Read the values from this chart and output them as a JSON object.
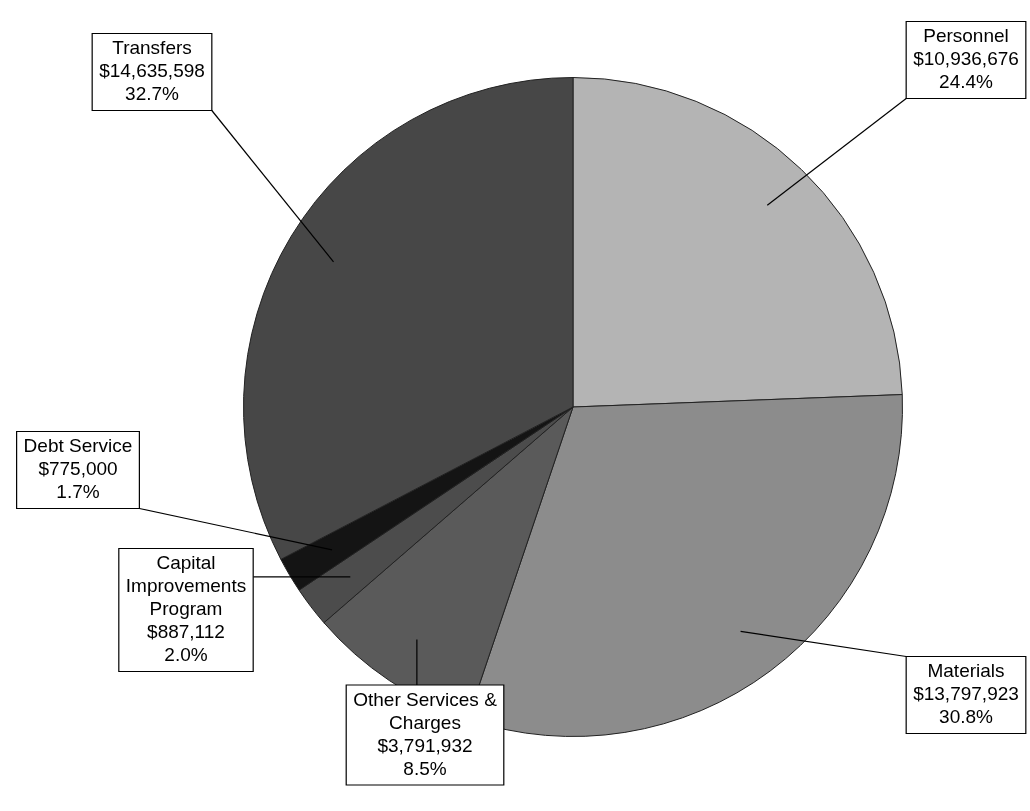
{
  "chart_data": {
    "type": "pie",
    "categories": [
      "Personnel",
      "Materials",
      "Other Services & Charges",
      "Capital Improvements Program",
      "Debt Service",
      "Transfers"
    ],
    "values": [
      10936676,
      13797923,
      3791932,
      887112,
      775000,
      14635598
    ],
    "colors": [
      "#b4b4b4",
      "#8c8c8c",
      "#5a5a5a",
      "#4c4c4c",
      "#141414",
      "#474747"
    ],
    "value_labels": [
      "$10,936,676\n24.4%",
      "$13,797,923\n30.8%",
      "$3,791,932\n8.5%",
      "$887,112\n2.0%",
      "$775,000\n1.7%",
      "$14,635,598\n32.7%"
    ],
    "legend": false
  }
}
